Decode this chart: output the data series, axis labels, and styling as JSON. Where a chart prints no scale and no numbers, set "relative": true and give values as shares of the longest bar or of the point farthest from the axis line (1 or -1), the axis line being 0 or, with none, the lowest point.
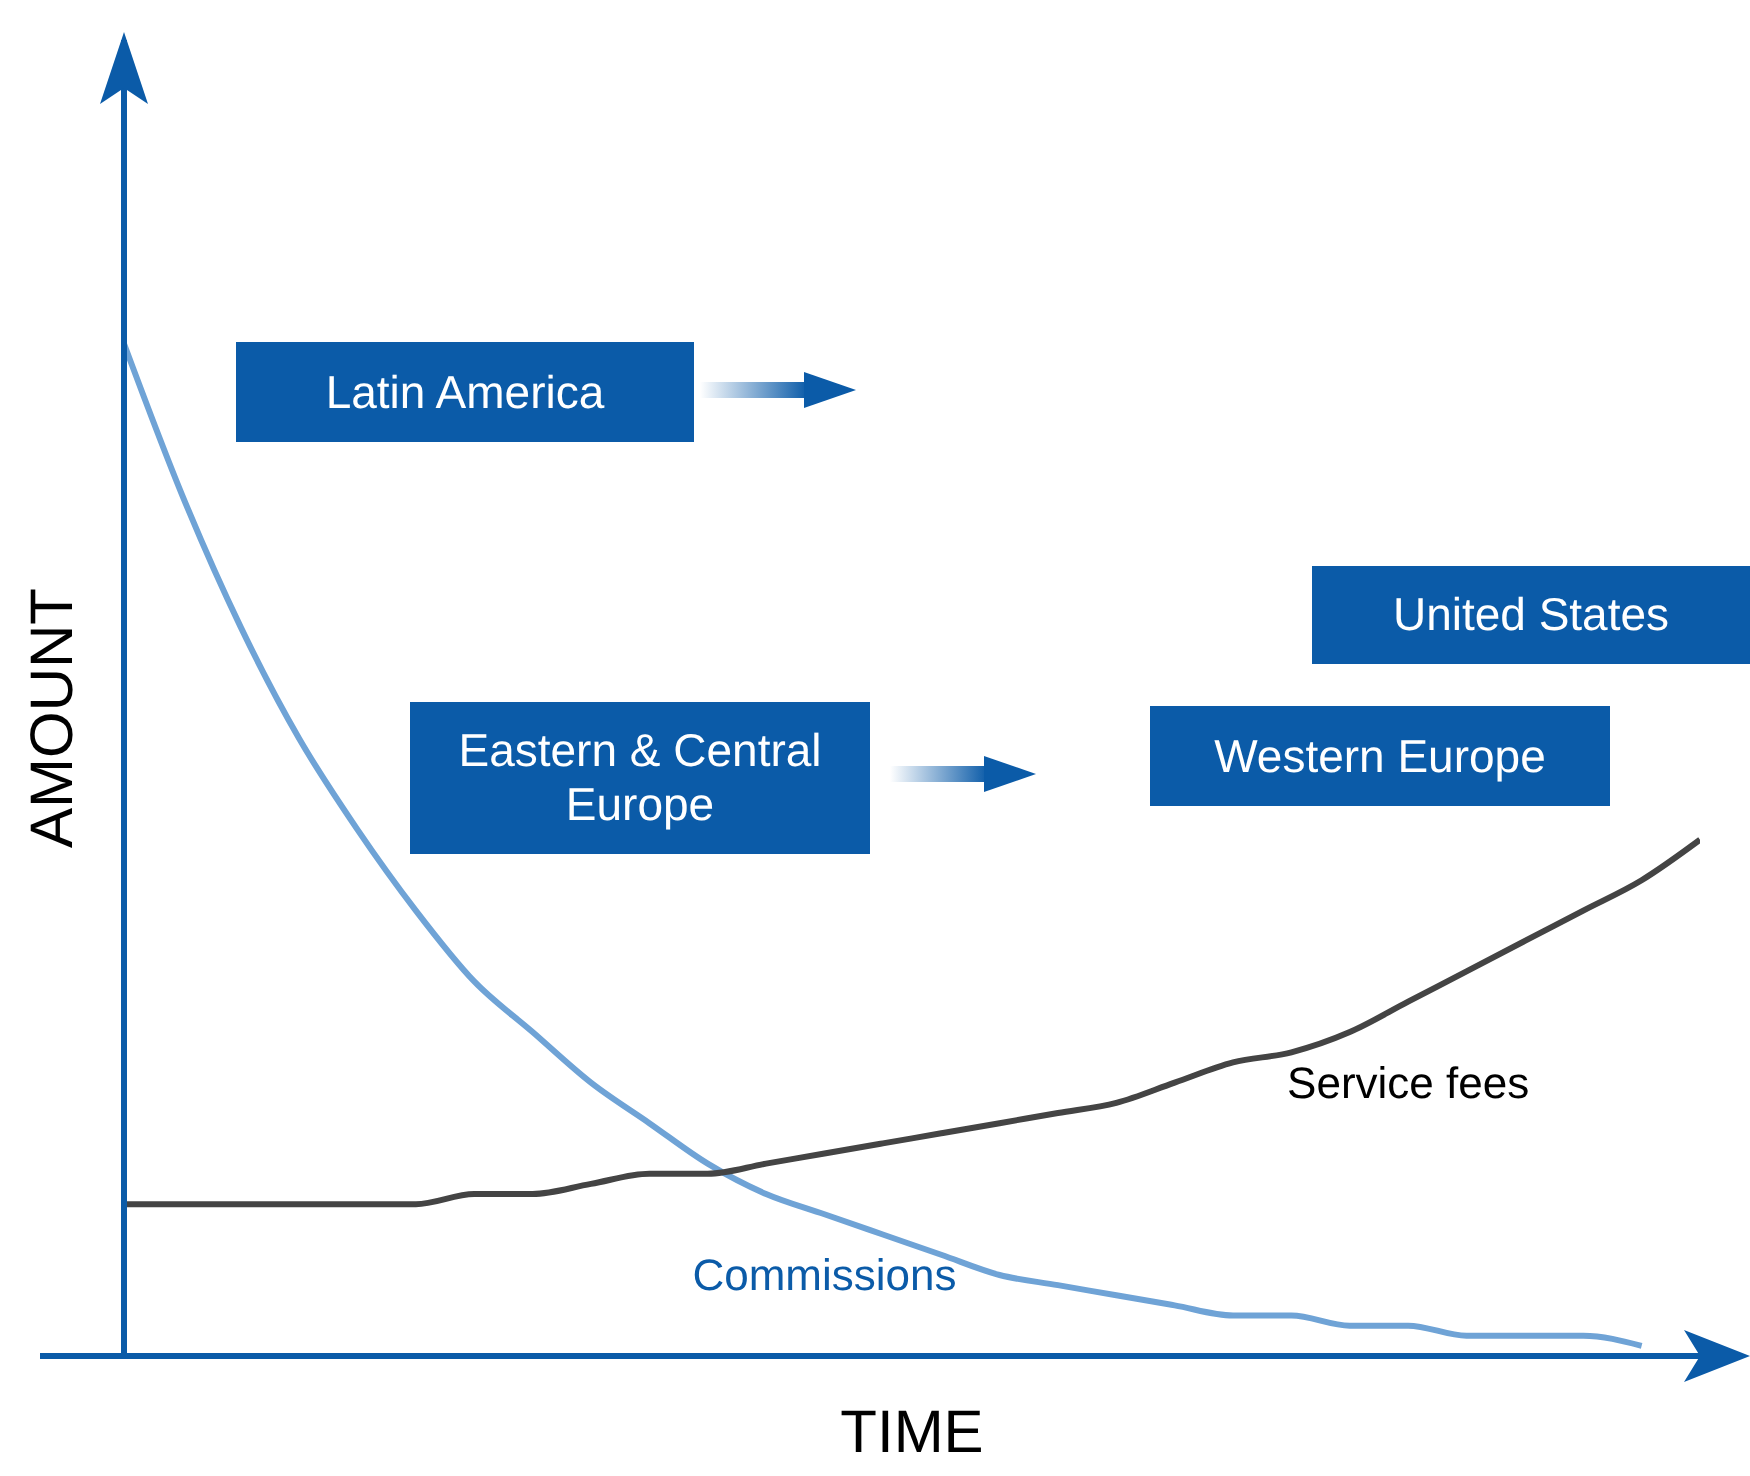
{
  "chart_data": {
    "type": "line",
    "relative": true,
    "xlabel": "TIME",
    "ylabel": "AMOUNT",
    "categories": [
      null,
      null,
      null,
      null,
      null,
      null,
      null,
      null,
      null,
      null,
      null,
      null,
      null,
      null,
      null,
      null,
      null,
      null,
      null,
      null,
      null,
      null,
      null,
      null,
      null,
      null,
      null,
      null
    ],
    "series": [
      {
        "name": "Commissions",
        "color": "#6fa3d6",
        "values": [
          1.0,
          0.85,
          0.72,
          0.61,
          0.52,
          0.44,
          0.37,
          0.32,
          0.27,
          0.23,
          0.19,
          0.16,
          0.14,
          0.12,
          0.1,
          0.08,
          0.07,
          0.06,
          0.05,
          0.04,
          0.04,
          0.03,
          0.03,
          0.02,
          0.02,
          0.02,
          0.01,
          null
        ]
      },
      {
        "name": "Service fees",
        "color": "#444444",
        "values": [
          0.15,
          0.15,
          0.15,
          0.15,
          0.15,
          0.15,
          0.16,
          0.16,
          0.17,
          0.18,
          0.18,
          0.19,
          0.2,
          0.21,
          0.22,
          0.23,
          0.24,
          0.25,
          0.27,
          0.29,
          0.3,
          0.32,
          0.35,
          0.38,
          0.41,
          0.44,
          0.47,
          0.51
        ]
      }
    ],
    "annotations": [
      "Latin America",
      "Eastern & Central Europe",
      "Western Europe",
      "United States"
    ]
  }
}
